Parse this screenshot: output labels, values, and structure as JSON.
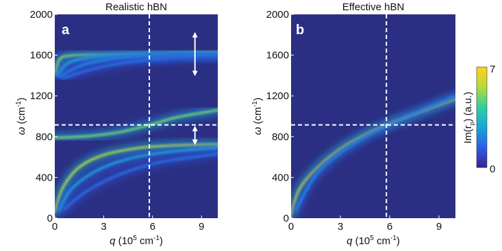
{
  "chart_data": [
    {
      "type": "heatmap",
      "panel_label": "a",
      "title": "Realistic hBN",
      "xlabel_symbol": "q",
      "xlabel_unit": " (10",
      "xlabel_exp": "5",
      "xlabel_tail": " cm",
      "xlabel_tail_exp": "-1",
      "xlabel_close": ")",
      "ylabel_symbol": "ω",
      "ylabel_unit": " (cm",
      "ylabel_exp": "-1",
      "ylabel_close": ")",
      "x_ticks": [
        "0",
        "3",
        "6",
        "9"
      ],
      "x_tick_values": [
        0,
        3,
        6,
        9
      ],
      "y_ticks": [
        "0",
        "400",
        "800",
        "1200",
        "1600",
        "2000"
      ],
      "y_tick_values": [
        0,
        400,
        800,
        1200,
        1600,
        2000
      ],
      "xlim": [
        0,
        10
      ],
      "ylim": [
        0,
        2000
      ],
      "background_color": "#2b2f83",
      "reference_lines": {
        "x": 5.8,
        "y": 915
      },
      "bands": [
        {
          "name": "upper-branch-1",
          "points": [
            [
              0.05,
              1420
            ],
            [
              0.3,
              1560
            ],
            [
              1,
              1595
            ],
            [
              3,
              1605
            ],
            [
              6,
              1615
            ],
            [
              10,
              1625
            ]
          ],
          "intensity": 0.75
        },
        {
          "name": "upper-branch-2",
          "points": [
            [
              0.15,
              1400
            ],
            [
              0.8,
              1520
            ],
            [
              2,
              1570
            ],
            [
              4,
              1595
            ],
            [
              7,
              1610
            ],
            [
              10,
              1618
            ]
          ],
          "intensity": 0.45
        },
        {
          "name": "upper-branch-3",
          "points": [
            [
              0.3,
              1385
            ],
            [
              1.5,
              1490
            ],
            [
              3,
              1550
            ],
            [
              5,
              1585
            ],
            [
              8,
              1605
            ],
            [
              10,
              1612
            ]
          ],
          "intensity": 0.35
        },
        {
          "name": "upper-branch-4",
          "points": [
            [
              0.5,
              1375
            ],
            [
              2.5,
              1470
            ],
            [
              5,
              1540
            ],
            [
              8,
              1585
            ],
            [
              10,
              1600
            ]
          ],
          "intensity": 0.25
        },
        {
          "name": "middle-branch",
          "points": [
            [
              0,
              790
            ],
            [
              2,
              805
            ],
            [
              4,
              845
            ],
            [
              5.8,
              915
            ],
            [
              7.5,
              990
            ],
            [
              10,
              1060
            ]
          ],
          "intensity": 0.7
        },
        {
          "name": "lower-branch-1",
          "points": [
            [
              0,
              60
            ],
            [
              0.5,
              300
            ],
            [
              1.5,
              500
            ],
            [
              3,
              620
            ],
            [
              5,
              685
            ],
            [
              7,
              710
            ],
            [
              10,
              725
            ]
          ],
          "intensity": 0.8
        },
        {
          "name": "lower-branch-2",
          "points": [
            [
              0.3,
              80
            ],
            [
              1,
              280
            ],
            [
              2.5,
              460
            ],
            [
              4.5,
              580
            ],
            [
              7,
              650
            ],
            [
              10,
              690
            ]
          ],
          "intensity": 0.4
        },
        {
          "name": "lower-branch-3",
          "points": [
            [
              0.6,
              90
            ],
            [
              2,
              270
            ],
            [
              4,
              430
            ],
            [
              6.5,
              550
            ],
            [
              10,
              630
            ]
          ],
          "intensity": 0.25
        }
      ],
      "double_arrows": [
        {
          "x": 8.6,
          "y_from": 1420,
          "y_to": 1800
        },
        {
          "x": 8.6,
          "y_from": 745,
          "y_to": 880
        }
      ]
    },
    {
      "type": "heatmap",
      "panel_label": "b",
      "title": "Effective hBN",
      "xlabel_symbol": "q",
      "xlabel_unit": " (10",
      "xlabel_exp": "5",
      "xlabel_tail": " cm",
      "xlabel_tail_exp": "-1",
      "xlabel_close": ")",
      "ylabel_symbol": "ω",
      "ylabel_unit": " (cm",
      "ylabel_exp": "-1",
      "ylabel_close": ")",
      "x_ticks": [
        "0",
        "3",
        "6",
        "9"
      ],
      "x_tick_values": [
        0,
        3,
        6,
        9
      ],
      "y_ticks": [
        "0",
        "400",
        "800",
        "1200",
        "1600",
        "2000"
      ],
      "y_tick_values": [
        0,
        400,
        800,
        1200,
        1600,
        2000
      ],
      "xlim": [
        0,
        10
      ],
      "ylim": [
        0,
        2000
      ],
      "background_color": "#2b2f83",
      "reference_lines": {
        "x": 5.8,
        "y": 915
      },
      "bands": [
        {
          "name": "main-branch",
          "points": [
            [
              0,
              40
            ],
            [
              0.5,
              280
            ],
            [
              1.5,
              480
            ],
            [
              3,
              680
            ],
            [
              4.5,
              820
            ],
            [
              5.8,
              915
            ],
            [
              7.5,
              1020
            ],
            [
              10,
              1170
            ]
          ],
          "intensity": 0.85
        },
        {
          "name": "diffuse-branch",
          "points": [
            [
              0.3,
              80
            ],
            [
              1.5,
              420
            ],
            [
              3,
              640
            ],
            [
              5,
              840
            ],
            [
              7,
              990
            ],
            [
              10,
              1200
            ]
          ],
          "intensity": 0.3
        }
      ],
      "double_arrows": []
    }
  ],
  "colorbar": {
    "label_prefix": "Im(r",
    "label_sub": "p",
    "label_suffix": ") (a.u.)",
    "max_label": "7",
    "min_label": "0",
    "range": [
      0,
      7
    ],
    "colormap": [
      "#3a1f94",
      "#2a5fe8",
      "#1aa6d9",
      "#2dd0a0",
      "#b9d93a",
      "#ffd21a"
    ]
  }
}
